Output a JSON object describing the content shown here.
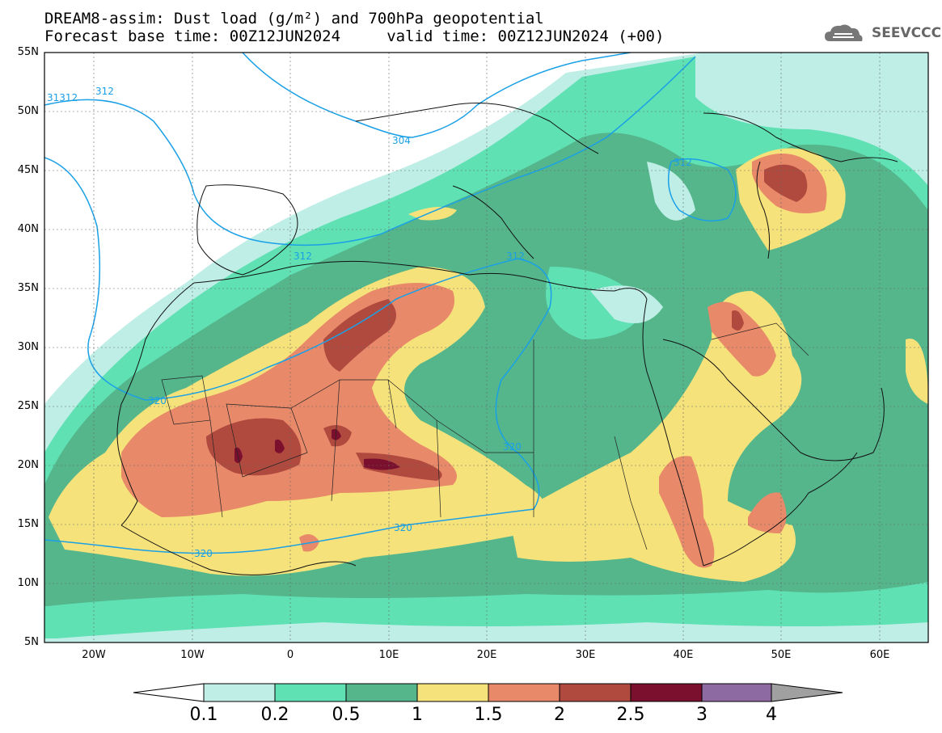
{
  "title": {
    "line1": "DREAM8-assim: Dust load (g/m²) and 700hPa geopotential",
    "line2": "Forecast base time: 00Z12JUN2024     valid time: 00Z12JUN2024 (+00)"
  },
  "logo": {
    "text": "SEEVCCC",
    "icon": "cloud-logo-icon"
  },
  "axes": {
    "lat_labels": [
      "55N",
      "50N",
      "45N",
      "40N",
      "35N",
      "30N",
      "25N",
      "20N",
      "15N",
      "10N",
      "5N"
    ],
    "lon_labels": [
      "20W",
      "10W",
      "0",
      "10E",
      "20E",
      "30E",
      "40E",
      "50E",
      "60E"
    ]
  },
  "contour_labels": [
    "312",
    "31312",
    "312",
    "304",
    "312",
    "312",
    "312",
    "320",
    "320",
    "320",
    "320"
  ],
  "colorbar": {
    "levels": [
      "0.1",
      "0.2",
      "0.5",
      "1",
      "1.5",
      "2",
      "2.5",
      "3",
      "4"
    ],
    "colors": [
      "#ffffff",
      "#bfeee6",
      "#5fe1b4",
      "#55b68c",
      "#f6e27a",
      "#e8896a",
      "#b04a3f",
      "#7a0f2e",
      "#8e6aa3",
      "#a0a0a0"
    ]
  },
  "palette": {
    "ocean": "#ffffff",
    "c01": "#bfeee6",
    "c02": "#5fe1b4",
    "c05": "#55b68c",
    "c1": "#f6e27a",
    "c15": "#e8896a",
    "c2": "#b04a3f",
    "c25": "#7a0f2e",
    "contour": "#1aa0e6"
  }
}
